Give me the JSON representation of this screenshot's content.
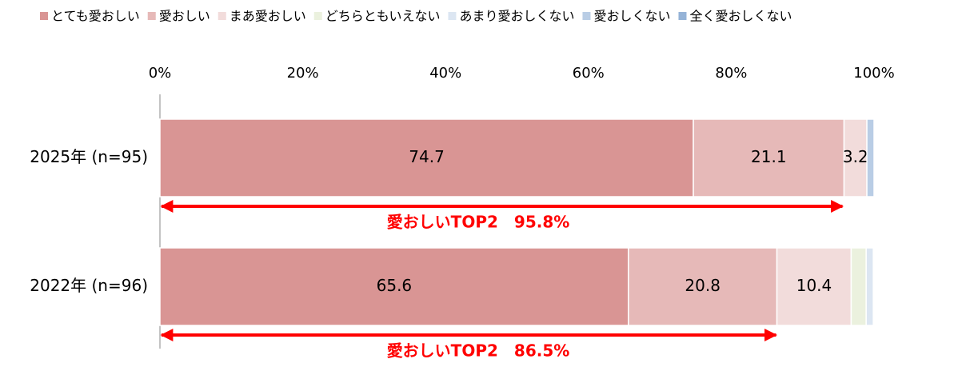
{
  "chart_data": {
    "type": "stacked_bar_horizontal",
    "categories": [
      "2025年 (n=95)",
      "2022年 (n=96)"
    ],
    "series": [
      {
        "name": "とても愛おしい",
        "color": "#d99594",
        "values": [
          74.7,
          65.6
        ]
      },
      {
        "name": "愛おしい",
        "color": "#e6b9b8",
        "values": [
          21.1,
          20.8
        ]
      },
      {
        "name": "まあ愛おしい",
        "color": "#f2dcdb",
        "values": [
          3.2,
          10.4
        ]
      },
      {
        "name": "どちらともいえない",
        "color": "#ebf1de",
        "values": [
          0,
          2.1
        ]
      },
      {
        "name": "あまり愛おしくない",
        "color": "#dce6f2",
        "values": [
          0,
          1.0
        ]
      },
      {
        "name": "愛おしくない",
        "color": "#b9cde5",
        "values": [
          1.0,
          0
        ]
      },
      {
        "name": "全く愛おしくない",
        "color": "#95b3d7",
        "values": [
          0,
          0
        ]
      }
    ],
    "xlim": [
      0,
      100
    ],
    "xticks": [
      {
        "value": 0,
        "label": "0%"
      },
      {
        "value": 20,
        "label": "20%"
      },
      {
        "value": 40,
        "label": "40%"
      },
      {
        "value": 60,
        "label": "60%"
      },
      {
        "value": 80,
        "label": "80%"
      },
      {
        "value": 100,
        "label": "100%"
      }
    ],
    "annotations": [
      {
        "text": "愛おしいTOP2　95.8%",
        "value": 95.8
      },
      {
        "text": "愛おしいTOP2　86.5%",
        "value": 86.5
      }
    ],
    "annotation_color": "#ff0000",
    "legend": "top"
  }
}
